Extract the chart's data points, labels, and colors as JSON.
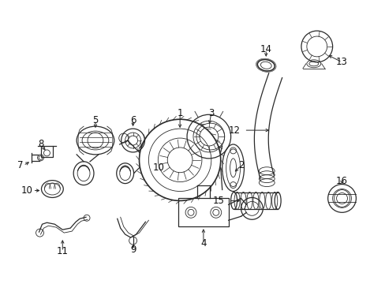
{
  "bg_color": "#ffffff",
  "fig_width": 4.89,
  "fig_height": 3.6,
  "dpi": 100,
  "line_color": "#2a2a2a",
  "label_color": "#111111",
  "label_fontsize": 8.5
}
